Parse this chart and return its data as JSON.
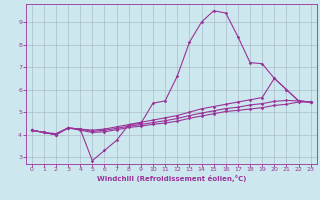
{
  "xlabel": "Windchill (Refroidissement éolien,°C)",
  "bg_color": "#cce8ee",
  "line_color": "#993399",
  "grid_color": "#aabbcc",
  "xlim": [
    -0.5,
    23.5
  ],
  "ylim": [
    2.7,
    9.8
  ],
  "yticks": [
    3,
    4,
    5,
    6,
    7,
    8,
    9
  ],
  "xticks": [
    0,
    1,
    2,
    3,
    4,
    5,
    6,
    7,
    8,
    9,
    10,
    11,
    12,
    13,
    14,
    15,
    16,
    17,
    18,
    19,
    20,
    21,
    22,
    23
  ],
  "lines": [
    {
      "x": [
        0,
        1,
        2,
        3,
        4,
        5,
        6,
        7,
        8,
        9,
        10,
        11,
        12,
        13,
        14,
        15,
        16,
        17,
        18,
        19,
        20,
        21,
        22,
        23
      ],
      "y": [
        4.2,
        4.1,
        4.0,
        4.3,
        4.25,
        2.85,
        3.3,
        3.75,
        4.45,
        4.5,
        5.4,
        5.5,
        6.6,
        8.1,
        9.0,
        9.5,
        9.4,
        8.35,
        7.2,
        7.15,
        6.5,
        6.0,
        5.5,
        5.45
      ]
    },
    {
      "x": [
        0,
        1,
        2,
        3,
        4,
        5,
        6,
        7,
        8,
        9,
        10,
        11,
        12,
        13,
        14,
        15,
        16,
        17,
        18,
        19,
        20,
        21,
        22,
        23
      ],
      "y": [
        4.2,
        4.1,
        4.0,
        4.3,
        4.25,
        4.2,
        4.25,
        4.35,
        4.45,
        4.55,
        4.65,
        4.75,
        4.85,
        5.0,
        5.15,
        5.25,
        5.35,
        5.45,
        5.55,
        5.65,
        6.5,
        6.0,
        5.5,
        5.45
      ]
    },
    {
      "x": [
        0,
        1,
        2,
        3,
        4,
        5,
        6,
        7,
        8,
        9,
        10,
        11,
        12,
        13,
        14,
        15,
        16,
        17,
        18,
        19,
        20,
        21,
        22,
        23
      ],
      "y": [
        4.2,
        4.1,
        4.0,
        4.3,
        4.25,
        4.15,
        4.2,
        4.28,
        4.38,
        4.45,
        4.54,
        4.62,
        4.72,
        4.85,
        4.96,
        5.06,
        5.16,
        5.22,
        5.32,
        5.38,
        5.48,
        5.52,
        5.5,
        5.45
      ]
    },
    {
      "x": [
        0,
        1,
        2,
        3,
        4,
        5,
        6,
        7,
        8,
        9,
        10,
        11,
        12,
        13,
        14,
        15,
        16,
        17,
        18,
        19,
        20,
        21,
        22,
        23
      ],
      "y": [
        4.2,
        4.1,
        4.05,
        4.3,
        4.2,
        4.1,
        4.13,
        4.22,
        4.32,
        4.38,
        4.46,
        4.52,
        4.6,
        4.73,
        4.83,
        4.93,
        5.03,
        5.08,
        5.14,
        5.2,
        5.3,
        5.35,
        5.45,
        5.45
      ]
    }
  ]
}
